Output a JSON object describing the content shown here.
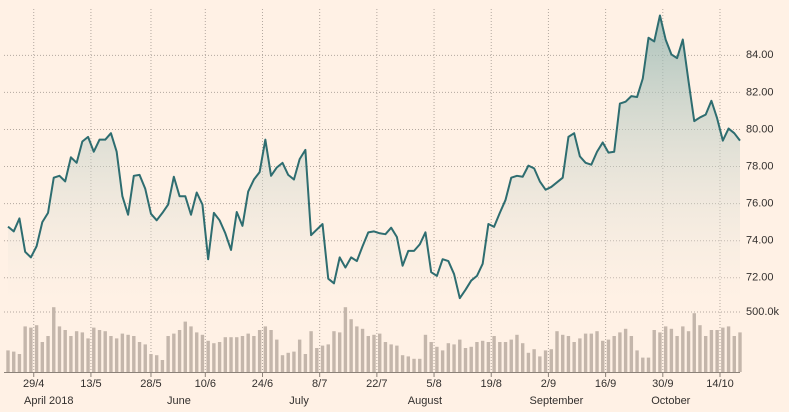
{
  "chart_data": [
    {
      "type": "area",
      "color": "#2e6d70",
      "x": [
        "2018-04-23",
        "2018-04-24",
        "2018-04-25",
        "2018-04-26",
        "2018-04-27",
        "2018-04-30",
        "2018-05-01",
        "2018-05-02",
        "2018-05-03",
        "2018-05-04",
        "2018-05-07",
        "2018-05-08",
        "2018-05-09",
        "2018-05-10",
        "2018-05-11",
        "2018-05-14",
        "2018-05-15",
        "2018-05-16",
        "2018-05-17",
        "2018-05-18",
        "2018-05-21",
        "2018-05-22",
        "2018-05-23",
        "2018-05-24",
        "2018-05-25",
        "2018-05-28",
        "2018-05-29",
        "2018-05-30",
        "2018-05-31",
        "2018-06-01",
        "2018-06-04",
        "2018-06-05",
        "2018-06-06",
        "2018-06-07",
        "2018-06-08",
        "2018-06-11",
        "2018-06-12",
        "2018-06-13",
        "2018-06-14",
        "2018-06-15",
        "2018-06-18",
        "2018-06-19",
        "2018-06-20",
        "2018-06-21",
        "2018-06-22",
        "2018-06-25",
        "2018-06-26",
        "2018-06-27",
        "2018-06-28",
        "2018-06-29",
        "2018-07-02",
        "2018-07-03",
        "2018-07-04",
        "2018-07-05",
        "2018-07-06",
        "2018-07-09",
        "2018-07-10",
        "2018-07-11",
        "2018-07-12",
        "2018-07-13",
        "2018-07-16",
        "2018-07-17",
        "2018-07-18",
        "2018-07-19",
        "2018-07-20",
        "2018-07-23",
        "2018-07-24",
        "2018-07-25",
        "2018-07-26",
        "2018-07-27",
        "2018-07-30",
        "2018-07-31",
        "2018-08-01",
        "2018-08-02",
        "2018-08-03",
        "2018-08-06",
        "2018-08-07",
        "2018-08-08",
        "2018-08-09",
        "2018-08-10",
        "2018-08-13",
        "2018-08-14",
        "2018-08-15",
        "2018-08-16",
        "2018-08-17",
        "2018-08-20",
        "2018-08-21",
        "2018-08-22",
        "2018-08-23",
        "2018-08-24",
        "2018-08-27",
        "2018-08-28",
        "2018-08-29",
        "2018-08-30",
        "2018-08-31",
        "2018-09-03",
        "2018-09-04",
        "2018-09-05",
        "2018-09-06",
        "2018-09-07",
        "2018-09-10",
        "2018-09-11",
        "2018-09-12",
        "2018-09-13",
        "2018-09-14",
        "2018-09-17",
        "2018-09-18",
        "2018-09-19",
        "2018-09-20",
        "2018-09-21",
        "2018-09-24",
        "2018-09-25",
        "2018-09-26",
        "2018-09-27",
        "2018-09-28",
        "2018-10-01",
        "2018-10-02",
        "2018-10-03",
        "2018-10-04",
        "2018-10-05",
        "2018-10-08",
        "2018-10-09",
        "2018-10-10",
        "2018-10-11",
        "2018-10-12",
        "2018-10-15",
        "2018-10-16",
        "2018-10-17",
        "2018-10-18"
      ],
      "values": [
        74.76,
        74.5,
        75.2,
        73.4,
        73.1,
        73.7,
        75.0,
        75.5,
        77.4,
        77.5,
        77.2,
        78.5,
        78.2,
        79.35,
        79.6,
        78.8,
        79.45,
        79.45,
        79.8,
        78.8,
        76.4,
        75.4,
        77.5,
        77.55,
        76.8,
        75.45,
        75.1,
        75.5,
        75.95,
        77.45,
        76.4,
        76.4,
        75.4,
        76.6,
        75.95,
        73.0,
        75.5,
        75.1,
        74.4,
        73.5,
        75.55,
        74.8,
        76.65,
        77.3,
        77.7,
        79.45,
        77.5,
        77.95,
        78.2,
        77.55,
        77.3,
        78.4,
        78.9,
        74.3,
        74.6,
        74.9,
        71.95,
        71.7,
        73.1,
        72.55,
        73.1,
        72.9,
        73.7,
        74.45,
        74.5,
        74.4,
        74.35,
        74.7,
        74.2,
        72.65,
        73.45,
        73.45,
        73.8,
        74.45,
        72.3,
        72.1,
        73.0,
        72.9,
        72.2,
        70.9,
        71.35,
        71.85,
        72.1,
        72.75,
        74.9,
        74.75,
        75.5,
        76.2,
        77.4,
        77.5,
        77.45,
        78.05,
        77.9,
        77.2,
        76.75,
        76.9,
        77.15,
        77.4,
        79.6,
        79.8,
        78.55,
        78.2,
        78.1,
        78.8,
        79.3,
        78.75,
        78.8,
        81.4,
        81.5,
        81.8,
        81.75,
        82.75,
        84.95,
        84.75,
        86.15,
        84.85,
        84.05,
        83.85,
        84.85,
        82.6,
        80.45,
        80.65,
        80.8,
        81.55,
        80.6,
        79.4,
        80.05,
        79.8,
        79.4
      ],
      "ylim": [
        70.8,
        86.5
      ],
      "yticks": [
        {
          "value": 72,
          "label": "72.00"
        },
        {
          "value": 74,
          "label": "74.00"
        },
        {
          "value": 76,
          "label": "76.00"
        },
        {
          "value": 78,
          "label": "78.00"
        },
        {
          "value": 80,
          "label": "80.00"
        },
        {
          "value": 82,
          "label": "82.00"
        },
        {
          "value": 84,
          "label": "84.00"
        }
      ],
      "grid": true
    },
    {
      "type": "bar",
      "color": "#c4b6ab",
      "values": [
        180000,
        170000,
        150000,
        380000,
        370000,
        390000,
        250000,
        300000,
        540000,
        380000,
        350000,
        300000,
        340000,
        330000,
        280000,
        370000,
        350000,
        340000,
        300000,
        280000,
        320000,
        310000,
        300000,
        250000,
        230000,
        150000,
        140000,
        100000,
        300000,
        320000,
        350000,
        420000,
        380000,
        330000,
        310000,
        260000,
        240000,
        250000,
        290000,
        290000,
        290000,
        300000,
        320000,
        300000,
        350000,
        380000,
        350000,
        270000,
        140000,
        160000,
        170000,
        270000,
        150000,
        340000,
        200000,
        220000,
        230000,
        340000,
        330000,
        540000,
        440000,
        380000,
        360000,
        300000,
        310000,
        320000,
        250000,
        230000,
        220000,
        140000,
        130000,
        110000,
        110000,
        310000,
        250000,
        210000,
        180000,
        240000,
        230000,
        270000,
        200000,
        210000,
        250000,
        260000,
        250000,
        300000,
        250000,
        250000,
        270000,
        310000,
        240000,
        160000,
        190000,
        130000,
        180000,
        190000,
        340000,
        310000,
        300000,
        250000,
        280000,
        320000,
        320000,
        340000,
        260000,
        270000,
        300000,
        330000,
        360000,
        300000,
        180000,
        120000,
        120000,
        350000,
        330000,
        380000,
        360000,
        300000,
        380000,
        340000,
        490000,
        390000,
        300000,
        350000,
        350000,
        370000,
        380000,
        300000,
        330000
      ],
      "ylim": [
        0,
        550000
      ],
      "yticks": [
        {
          "value": 500000,
          "label": "500.0k"
        }
      ],
      "xticks": [
        {
          "value": "2018-04-29",
          "label": "29/4"
        },
        {
          "value": "2018-05-13",
          "label": "13/5"
        },
        {
          "value": "2018-05-28",
          "label": "28/5"
        },
        {
          "value": "2018-06-10",
          "label": "10/6"
        },
        {
          "value": "2018-06-24",
          "label": "24/6"
        },
        {
          "value": "2018-07-08",
          "label": "8/7"
        },
        {
          "value": "2018-07-22",
          "label": "22/7"
        },
        {
          "value": "2018-08-05",
          "label": "5/8"
        },
        {
          "value": "2018-08-19",
          "label": "19/8"
        },
        {
          "value": "2018-09-02",
          "label": "2/9"
        },
        {
          "value": "2018-09-16",
          "label": "16/9"
        },
        {
          "value": "2018-09-30",
          "label": "30/9"
        },
        {
          "value": "2018-10-14",
          "label": "14/10"
        }
      ],
      "month_labels": [
        {
          "value": "2018-04",
          "label": "April 2018"
        },
        {
          "value": "2018-06",
          "label": "June"
        },
        {
          "value": "2018-07",
          "label": "July"
        },
        {
          "value": "2018-08",
          "label": "August"
        },
        {
          "value": "2018-09",
          "label": "September"
        },
        {
          "value": "2018-10",
          "label": "October"
        }
      ]
    }
  ]
}
